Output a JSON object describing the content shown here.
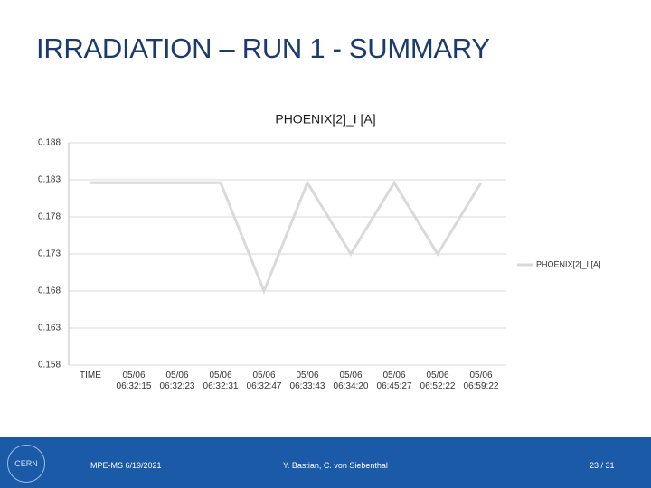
{
  "slide_title": "IRRADIATION – RUN 1 - SUMMARY",
  "chart_data": {
    "type": "line",
    "title": "PHOENIX[2]_I [A]",
    "categories": [
      "TIME",
      "05/06 06:32:15",
      "05/06 06:32:23",
      "05/06 06:32:31",
      "05/06 06:32:47",
      "05/06 06:33:43",
      "05/06 06:34:20",
      "05/06 06:45:27",
      "05/06 06:52:22",
      "05/06 06:59:22"
    ],
    "series": [
      {
        "name": "PHOENIX[2]_I [A]",
        "color": "#d9d9d9",
        "values": [
          0.1826,
          0.1826,
          0.1826,
          0.1826,
          0.168,
          0.1826,
          0.173,
          0.1826,
          0.173,
          0.1826
        ]
      }
    ],
    "ylim": [
      0.158,
      0.188
    ],
    "yticks": [
      0.158,
      0.163,
      0.168,
      0.173,
      0.178,
      0.183,
      0.188
    ],
    "grid": true,
    "legend": "right"
  },
  "footer": {
    "logo": "CERN",
    "left": "MPE-MS 6/19/2021",
    "center": "Y. Bastian, C. von Siebenthal",
    "right": "23 / 31"
  }
}
